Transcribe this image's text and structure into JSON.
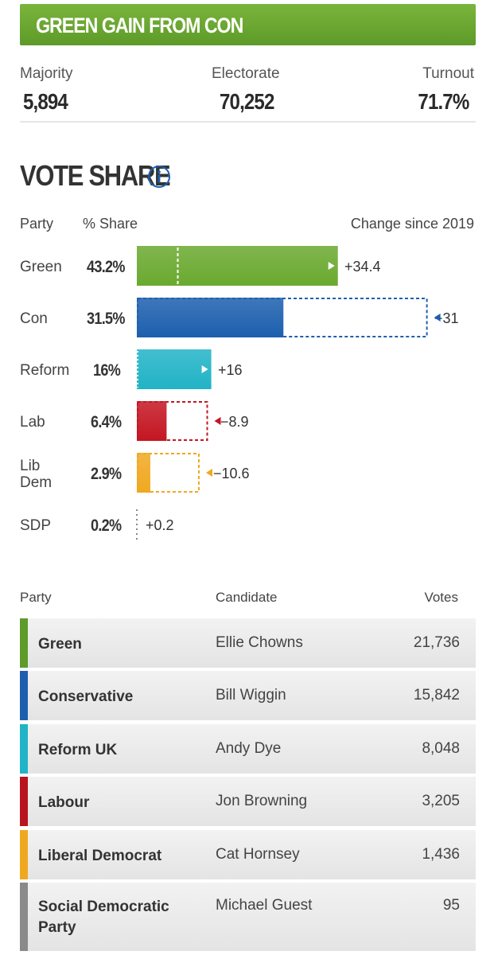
{
  "banner": {
    "text": "GREEN GAIN FROM CON"
  },
  "stats": {
    "majority_label": "Majority",
    "majority_value": "5,894",
    "electorate_label": "Electorate",
    "electorate_value": "70,252",
    "turnout_label": "Turnout",
    "turnout_value": "71.7%"
  },
  "vote_share": {
    "heading": "VOTE SHARE",
    "info_icon": "info-circle-icon",
    "col_party": "Party",
    "col_share": "% Share",
    "col_change": "Change since 2019"
  },
  "chart_data": {
    "type": "bar",
    "title": "VOTE SHARE",
    "categories": [
      "Green",
      "Con",
      "Reform",
      "Lab",
      "Lib Dem",
      "SDP"
    ],
    "series": [
      {
        "name": "% Share",
        "values": [
          43.2,
          31.5,
          16,
          6.4,
          2.9,
          0.2
        ]
      },
      {
        "name": "Change since 2019",
        "values": [
          34.4,
          -31,
          16,
          -8.9,
          -10.6,
          0.2
        ]
      }
    ],
    "share_labels": [
      "43.2%",
      "31.5%",
      "16%",
      "6.4%",
      "2.9%",
      "0.2%"
    ],
    "change_labels": [
      "+34.4",
      "−31",
      "+16",
      "−8.9",
      "−10.6",
      "+0.2"
    ],
    "party_labels": [
      "Green",
      "Con",
      "Reform",
      "Lab",
      "Lib\nDem",
      "SDP"
    ],
    "colors": [
      "#6aa92f",
      "#1d5fae",
      "#21b3c6",
      "#c41622",
      "#f0a820",
      "#999999"
    ]
  },
  "results": {
    "col_party": "Party",
    "col_candidate": "Candidate",
    "col_votes": "Votes",
    "rows": [
      {
        "party": "Green",
        "candidate": "Ellie Chowns",
        "votes": "21,736",
        "color": "#5e9b2a"
      },
      {
        "party": "Conservative",
        "candidate": "Bill Wiggin",
        "votes": "15,842",
        "color": "#1d5fae"
      },
      {
        "party": "Reform UK",
        "candidate": "Andy Dye",
        "votes": "8,048",
        "color": "#21b3c6"
      },
      {
        "party": "Labour",
        "candidate": "Jon Browning",
        "votes": "3,205",
        "color": "#b8141e"
      },
      {
        "party": "Liberal Democrat",
        "candidate": "Cat Hornsey",
        "votes": "1,436",
        "color": "#f0a820"
      },
      {
        "party": "Social Democratic Party",
        "candidate": "Michael Guest",
        "votes": "95",
        "color": "#8a8a8a"
      }
    ]
  }
}
